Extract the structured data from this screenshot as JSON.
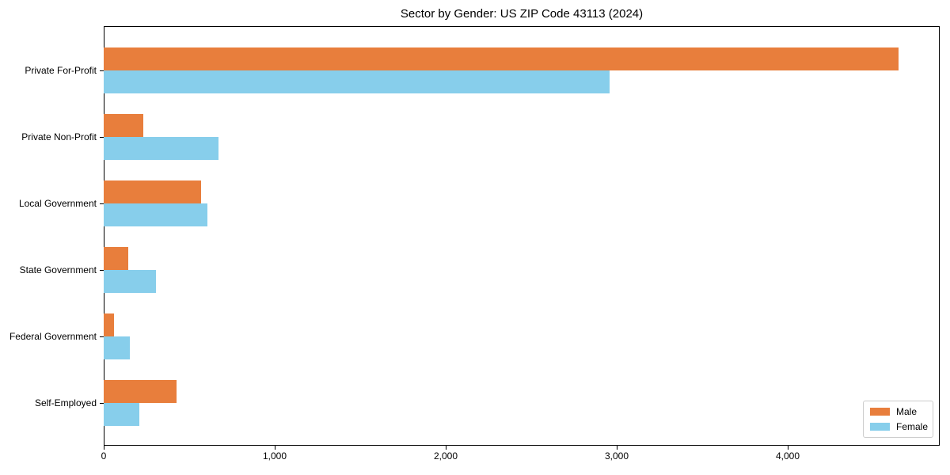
{
  "title": "Sector by Gender: US ZIP Code 43113 (2024)",
  "chart_data": {
    "type": "bar",
    "orientation": "horizontal",
    "title": "Sector by Gender: US ZIP Code 43113 (2024)",
    "categories": [
      "Private For-Profit",
      "Private Non-Profit",
      "Local Government",
      "State Government",
      "Federal Government",
      "Self-Employed"
    ],
    "series": [
      {
        "name": "Male",
        "color": "#e87e3c",
        "values": [
          4650,
          230,
          570,
          145,
          60,
          425
        ]
      },
      {
        "name": "Female",
        "color": "#87ceeb",
        "values": [
          2960,
          670,
          605,
          305,
          155,
          210
        ]
      }
    ],
    "xlabel": "",
    "ylabel": "",
    "xlim": [
      0,
      4890
    ],
    "xticks": {
      "values": [
        0,
        1000,
        2000,
        3000,
        4000
      ],
      "labels": [
        "0",
        "1,000",
        "2,000",
        "3,000",
        "4,000"
      ]
    },
    "grid": false,
    "legend_position": "lower right"
  }
}
